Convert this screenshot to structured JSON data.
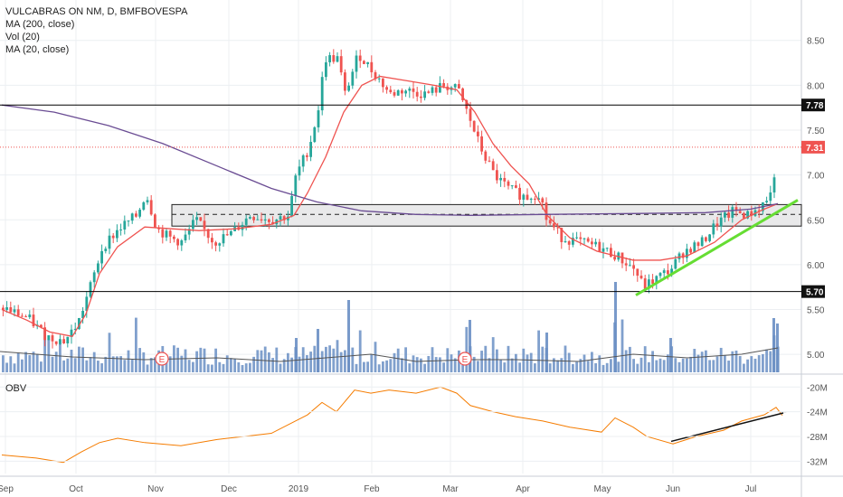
{
  "legend": {
    "symbol": "VULCABRAS ON NM, D, BMFBOVESPA",
    "ma200": "MA (200, close)",
    "vol": "Vol (20)",
    "ma20": "MA (20, close)"
  },
  "obv_label": "OBV",
  "colors": {
    "up": "#26a69a",
    "down": "#ef5350",
    "volume": "#6a8fc4",
    "ma20": "#ef5350",
    "ma200": "#6a4c93",
    "obv": "#f57c00",
    "trend": "#66dd33",
    "grid": "#eceff2",
    "resistance": "#000000"
  },
  "chart_data": [
    {
      "type": "candlestick",
      "title": "VULCABRAS ON NM, D, BMFBOVESPA",
      "x_ticks": [
        "Sep",
        "Oct",
        "Nov",
        "Dec",
        "2019",
        "Feb",
        "Mar",
        "Apr",
        "May",
        "Jun",
        "Jul"
      ],
      "y_ticks": [
        "8.50",
        "8.00",
        "7.50",
        "7.00",
        "6.50",
        "6.00",
        "5.50",
        "5.00"
      ],
      "ylim": [
        4.8,
        8.85
      ],
      "last_price_label": "7.31",
      "resistance_labels": [
        "7.78",
        "5.70"
      ],
      "resistance_levels": [
        7.78,
        5.7
      ],
      "consolidation_zone": [
        6.43,
        6.67
      ],
      "consolidation_mid": 6.56,
      "trendline": [
        {
          "x": "mid-May",
          "y": 5.66
        },
        {
          "x": "Jul",
          "y": 6.72
        }
      ],
      "earnings_markers": [
        "E",
        "E"
      ],
      "series": [
        {
          "name": "MA (20, close)",
          "values": [
            5.5,
            5.4,
            5.32,
            5.25,
            5.2,
            5.25,
            5.45,
            5.8,
            6.1,
            6.3,
            6.4,
            6.4,
            6.38,
            6.35,
            6.38,
            6.45,
            6.55,
            6.9,
            7.4,
            7.8,
            8.0,
            8.1,
            8.05,
            8.0,
            7.95,
            7.7,
            7.3,
            7.0,
            6.8,
            6.5,
            6.25,
            6.15,
            6.1,
            6.2,
            6.4,
            6.55,
            6.65,
            6.7
          ]
        },
        {
          "name": "MA (200, close)",
          "values": [
            7.78,
            7.7,
            7.55,
            7.35,
            7.1,
            6.85,
            6.7,
            6.6,
            6.56,
            6.55,
            6.56,
            6.57,
            6.57,
            6.57,
            6.6,
            6.65,
            6.7
          ]
        }
      ]
    },
    {
      "type": "line",
      "title": "OBV",
      "y_ticks": [
        "-20M",
        "-24M",
        "-28M",
        "-32M"
      ],
      "ylim": [
        -34,
        -18.5
      ]
    }
  ]
}
